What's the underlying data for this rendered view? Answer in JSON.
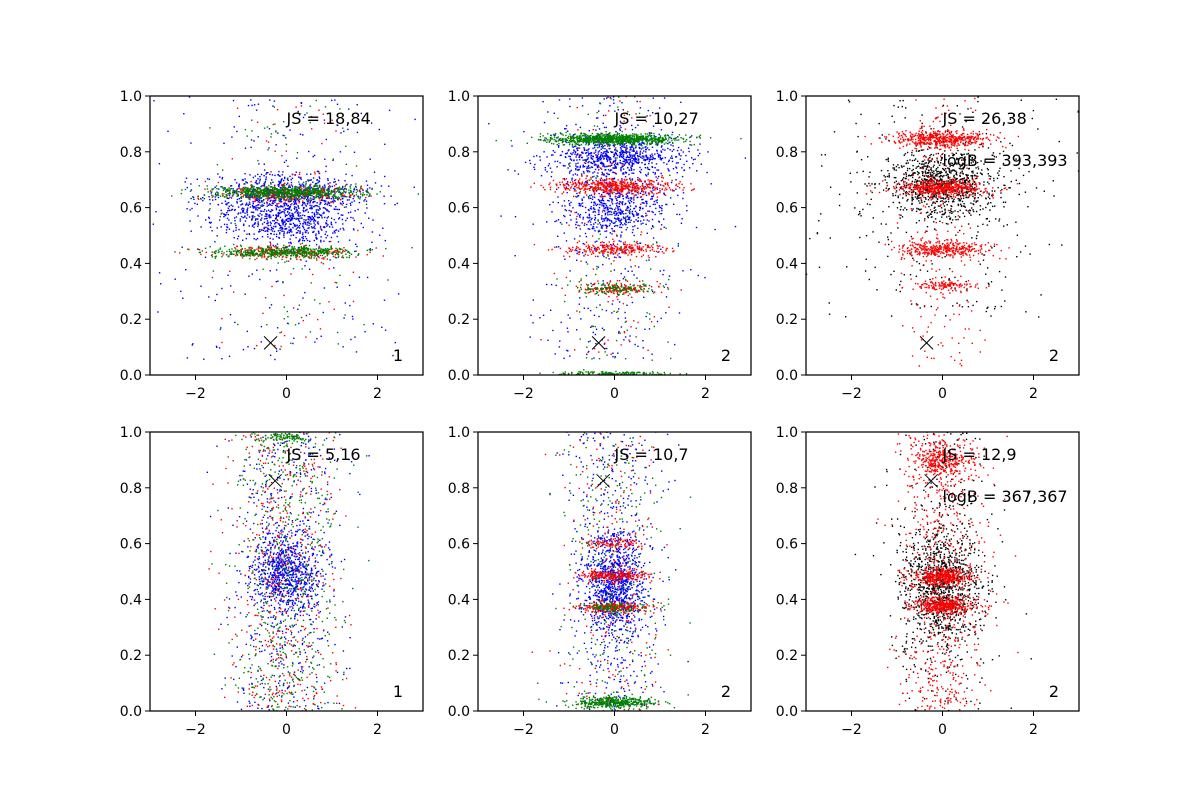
{
  "figure": {
    "layout": "2x3 grid of scatter panels",
    "marker_style": "tiny dots"
  },
  "chart_data": [
    {
      "type": "scatter",
      "xlim": [
        -3,
        3
      ],
      "ylim": [
        0,
        1
      ],
      "xticks": [
        -2,
        0,
        2
      ],
      "xtick_labels": [
        "−2",
        "0",
        "2"
      ],
      "yticks": [
        0,
        0.2,
        0.4,
        0.6,
        0.8,
        1.0
      ],
      "ytick_labels": [
        "0.0",
        "0.2",
        "0.4",
        "0.6",
        "0.8",
        "1.0"
      ],
      "js_text": "JS = 18,84",
      "logb_text": "",
      "corner_label": "1",
      "marker_x": {
        "x": -0.35,
        "y": 0.115
      },
      "series": [
        {
          "name": "blue",
          "color": "#0000ff",
          "bands": [
            {
              "y": 0.65,
              "w": 0.07,
              "xs": 1.6,
              "n": 700
            },
            {
              "y": 0.55,
              "w": 0.08,
              "xs": 1.3,
              "n": 600
            }
          ],
          "bg": {
            "n": 250,
            "ymin": 0.05,
            "ymax": 1.0,
            "xs": 1.4
          }
        },
        {
          "name": "red",
          "color": "#ff0000",
          "bands": [
            {
              "y": 0.65,
              "w": 0.03,
              "xs": 1.5,
              "n": 300
            },
            {
              "y": 0.44,
              "w": 0.025,
              "xs": 1.4,
              "n": 250
            }
          ],
          "bg": {
            "n": 80,
            "ymin": 0.1,
            "ymax": 1.0,
            "xs": 0.8
          }
        },
        {
          "name": "green",
          "color": "#008000",
          "bands": [
            {
              "y": 0.655,
              "w": 0.025,
              "xs": 1.5,
              "n": 700
            },
            {
              "y": 0.44,
              "w": 0.02,
              "xs": 1.4,
              "n": 500
            }
          ],
          "bg": {
            "n": 90,
            "ymin": 0.1,
            "ymax": 1.0,
            "xs": 0.8
          }
        }
      ]
    },
    {
      "type": "scatter",
      "xlim": [
        -3,
        3
      ],
      "ylim": [
        0,
        1
      ],
      "xticks": [
        -2,
        0,
        2
      ],
      "xtick_labels": [
        "−2",
        "0",
        "2"
      ],
      "yticks": [
        0,
        0.2,
        0.4,
        0.6,
        0.8,
        1.0
      ],
      "ytick_labels": [
        "0.0",
        "0.2",
        "0.4",
        "0.6",
        "0.8",
        "1.0"
      ],
      "js_text": "JS = 10,27",
      "logb_text": "",
      "corner_label": "2",
      "marker_x": {
        "x": -0.35,
        "y": 0.115
      },
      "series": [
        {
          "name": "blue",
          "color": "#0000ff",
          "bands": [
            {
              "y": 0.78,
              "w": 0.07,
              "xs": 1.3,
              "n": 700
            },
            {
              "y": 0.6,
              "w": 0.1,
              "xs": 1.0,
              "n": 500
            }
          ],
          "bg": {
            "n": 400,
            "ymin": 0.05,
            "ymax": 1.0,
            "xs": 0.9
          }
        },
        {
          "name": "red",
          "color": "#ff0000",
          "bands": [
            {
              "y": 0.675,
              "w": 0.03,
              "xs": 1.2,
              "n": 500
            },
            {
              "y": 0.45,
              "w": 0.025,
              "xs": 1.0,
              "n": 250
            },
            {
              "y": 0.31,
              "w": 0.02,
              "xs": 0.8,
              "n": 150
            }
          ],
          "bg": {
            "n": 120,
            "ymin": 0.05,
            "ymax": 1.0,
            "xs": 0.6
          }
        },
        {
          "name": "green",
          "color": "#008000",
          "bands": [
            {
              "y": 0.845,
              "w": 0.02,
              "xs": 1.3,
              "n": 900
            },
            {
              "y": 0.31,
              "w": 0.02,
              "xs": 0.8,
              "n": 120
            },
            {
              "y": 0.005,
              "w": 0.008,
              "xs": 1.2,
              "n": 150
            }
          ],
          "bg": {
            "n": 120,
            "ymin": 0.05,
            "ymax": 1.0,
            "xs": 0.6
          }
        }
      ]
    },
    {
      "type": "scatter",
      "xlim": [
        -3,
        3
      ],
      "ylim": [
        0,
        1
      ],
      "xticks": [
        -2,
        0,
        2
      ],
      "xtick_labels": [
        "−2",
        "0",
        "2"
      ],
      "yticks": [
        0,
        0.2,
        0.4,
        0.6,
        0.8,
        1.0
      ],
      "ytick_labels": [
        "0.0",
        "0.2",
        "0.4",
        "0.6",
        "0.8",
        "1.0"
      ],
      "js_text": "JS = 26,38",
      "logb_text": "logB = 393,393",
      "corner_label": "2",
      "marker_x": {
        "x": -0.35,
        "y": 0.115
      },
      "series": [
        {
          "name": "black",
          "color": "#000000",
          "bands": [
            {
              "y": 0.68,
              "w": 0.12,
              "xs": 1.1,
              "n": 900
            }
          ],
          "bg": {
            "n": 300,
            "ymin": 0.2,
            "ymax": 1.0,
            "xs": 1.4
          }
        },
        {
          "name": "red",
          "color": "#ff0000",
          "bands": [
            {
              "y": 0.845,
              "w": 0.03,
              "xs": 1.0,
              "n": 500
            },
            {
              "y": 0.67,
              "w": 0.03,
              "xs": 0.9,
              "n": 500
            },
            {
              "y": 0.45,
              "w": 0.03,
              "xs": 0.9,
              "n": 350
            },
            {
              "y": 0.32,
              "w": 0.02,
              "xs": 0.6,
              "n": 120
            }
          ],
          "bg": {
            "n": 200,
            "ymin": 0.02,
            "ymax": 1.0,
            "xs": 0.5
          }
        }
      ]
    },
    {
      "type": "scatter",
      "xlim": [
        -3,
        3
      ],
      "ylim": [
        0,
        1
      ],
      "xticks": [
        -2,
        0,
        2
      ],
      "xtick_labels": [
        "−2",
        "0",
        "2"
      ],
      "yticks": [
        0,
        0.2,
        0.4,
        0.6,
        0.8,
        1.0
      ],
      "ytick_labels": [
        "0.0",
        "0.2",
        "0.4",
        "0.6",
        "0.8",
        "1.0"
      ],
      "js_text": "JS = 5,16",
      "logb_text": "",
      "corner_label": "1",
      "marker_x": {
        "x": -0.25,
        "y": 0.825
      },
      "series": [
        {
          "name": "blue",
          "color": "#0000ff",
          "bands": [
            {
              "y": 0.5,
              "w": 0.15,
              "xs": 0.7,
              "n": 800
            }
          ],
          "bg": {
            "n": 500,
            "ymin": 0.0,
            "ymax": 1.0,
            "xs": 0.6
          }
        },
        {
          "name": "red",
          "color": "#ff0000",
          "bands": [],
          "bg": {
            "n": 500,
            "ymin": 0.0,
            "ymax": 1.0,
            "xs": 0.6
          }
        },
        {
          "name": "green",
          "color": "#008000",
          "bands": [
            {
              "y": 0.98,
              "w": 0.02,
              "xs": 0.6,
              "n": 100
            }
          ],
          "bg": {
            "n": 550,
            "ymin": 0.0,
            "ymax": 1.0,
            "xs": 0.6
          }
        }
      ]
    },
    {
      "type": "scatter",
      "xlim": [
        -3,
        3
      ],
      "ylim": [
        0,
        1
      ],
      "xticks": [
        -2,
        0,
        2
      ],
      "xtick_labels": [
        "−2",
        "0",
        "2"
      ],
      "yticks": [
        0,
        0.2,
        0.4,
        0.6,
        0.8,
        1.0
      ],
      "ytick_labels": [
        "0.0",
        "0.2",
        "0.4",
        "0.6",
        "0.8",
        "1.0"
      ],
      "js_text": "JS = 10,7",
      "logb_text": "",
      "corner_label": "2",
      "marker_x": {
        "x": -0.25,
        "y": 0.825
      },
      "series": [
        {
          "name": "blue",
          "color": "#0000ff",
          "bands": [
            {
              "y": 0.45,
              "w": 0.18,
              "xs": 0.6,
              "n": 900
            }
          ],
          "bg": {
            "n": 450,
            "ymin": 0.0,
            "ymax": 1.0,
            "xs": 0.55
          }
        },
        {
          "name": "red",
          "color": "#ff0000",
          "bands": [
            {
              "y": 0.485,
              "w": 0.02,
              "xs": 0.7,
              "n": 250
            },
            {
              "y": 0.37,
              "w": 0.02,
              "xs": 0.7,
              "n": 250
            },
            {
              "y": 0.6,
              "w": 0.02,
              "xs": 0.6,
              "n": 100
            }
          ],
          "bg": {
            "n": 200,
            "ymin": 0.0,
            "ymax": 1.0,
            "xs": 0.5
          }
        },
        {
          "name": "green",
          "color": "#008000",
          "bands": [
            {
              "y": 0.03,
              "w": 0.02,
              "xs": 0.8,
              "n": 400
            },
            {
              "y": 0.37,
              "w": 0.02,
              "xs": 0.7,
              "n": 120
            }
          ],
          "bg": {
            "n": 250,
            "ymin": 0.0,
            "ymax": 1.0,
            "xs": 0.55
          }
        }
      ]
    },
    {
      "type": "scatter",
      "xlim": [
        -3,
        3
      ],
      "ylim": [
        0,
        1
      ],
      "xticks": [
        -2,
        0,
        2
      ],
      "xtick_labels": [
        "−2",
        "0",
        "2"
      ],
      "yticks": [
        0,
        0.2,
        0.4,
        0.6,
        0.8,
        1.0
      ],
      "ytick_labels": [
        "0.0",
        "0.2",
        "0.4",
        "0.6",
        "0.8",
        "1.0"
      ],
      "js_text": "JS = 12,9",
      "logb_text": "logB = 367,367",
      "corner_label": "2",
      "marker_x": {
        "x": -0.25,
        "y": 0.825
      },
      "series": [
        {
          "name": "black",
          "color": "#000000",
          "bands": [
            {
              "y": 0.45,
              "w": 0.2,
              "xs": 0.75,
              "n": 1000
            }
          ],
          "bg": {
            "n": 300,
            "ymin": 0.0,
            "ymax": 1.0,
            "xs": 0.6
          }
        },
        {
          "name": "red",
          "color": "#ff0000",
          "bands": [
            {
              "y": 0.48,
              "w": 0.03,
              "xs": 0.6,
              "n": 400
            },
            {
              "y": 0.38,
              "w": 0.03,
              "xs": 0.6,
              "n": 400
            },
            {
              "y": 0.9,
              "w": 0.06,
              "xs": 0.6,
              "n": 300
            }
          ],
          "bg": {
            "n": 700,
            "ymin": 0.0,
            "ymax": 1.0,
            "xs": 0.5
          }
        }
      ]
    }
  ]
}
